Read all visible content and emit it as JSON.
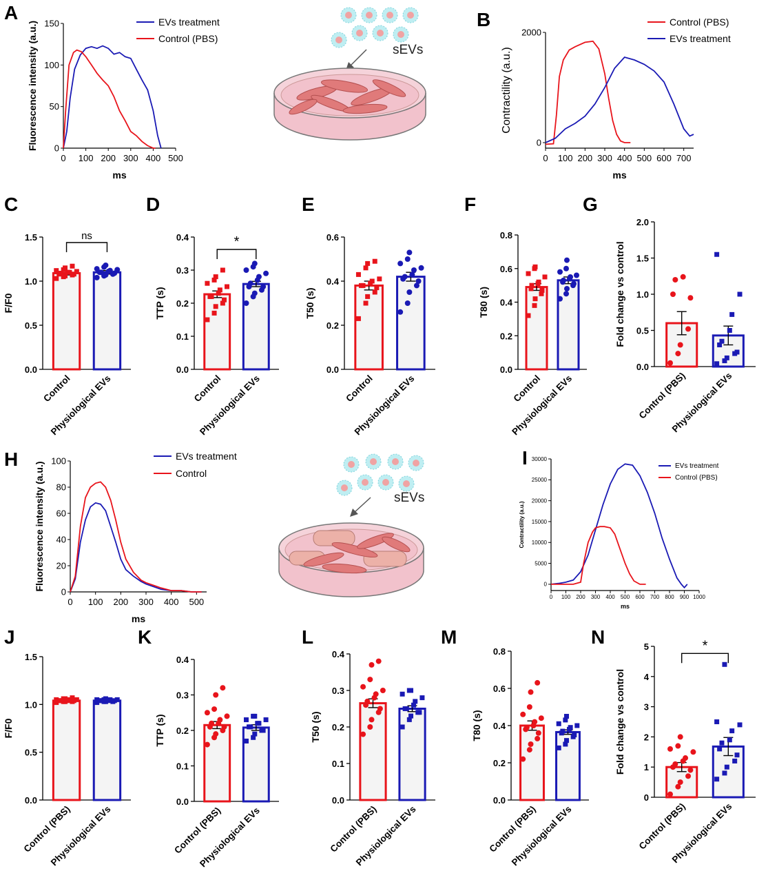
{
  "colors": {
    "red": "#e8141b",
    "blue": "#1a1ab4",
    "bar_fill": "#f4f4f4",
    "axis": "#000000",
    "dish": "#f2c2cc",
    "cell": "#e07a7a",
    "vesicle": "#7fd3dc"
  },
  "illustrations": {
    "top": {
      "label": "sEVs"
    },
    "bottom": {
      "label": "sEVs"
    }
  },
  "chart_data": [
    {
      "id": "A",
      "panel_letter": "A",
      "type": "line",
      "xlabel": "ms",
      "ylabel": "Fluorescence intensity (a.u.)",
      "xlim": [
        0,
        500
      ],
      "ylim": [
        0,
        150
      ],
      "xticks": [
        "0",
        "100",
        "200",
        "300",
        "400",
        "500"
      ],
      "yticks": [
        "0",
        "50",
        "100",
        "150"
      ],
      "legend": [
        "EVs treatment",
        "Control (PBS)"
      ],
      "legend_position": "top-right",
      "series": [
        {
          "name": "EVs treatment",
          "color": "#1a1ab4",
          "x": [
            0,
            15,
            30,
            50,
            75,
            100,
            125,
            150,
            175,
            200,
            225,
            250,
            275,
            300,
            325,
            350,
            375,
            400,
            420,
            435
          ],
          "y": [
            0,
            20,
            60,
            95,
            112,
            120,
            122,
            120,
            123,
            120,
            113,
            115,
            110,
            108,
            95,
            82,
            70,
            45,
            15,
            0
          ]
        },
        {
          "name": "Control (PBS)",
          "color": "#e8141b",
          "x": [
            0,
            10,
            25,
            45,
            60,
            80,
            100,
            125,
            150,
            175,
            200,
            225,
            250,
            275,
            300,
            325,
            350,
            375,
            400,
            410
          ],
          "y": [
            0,
            45,
            100,
            115,
            118,
            116,
            110,
            100,
            90,
            82,
            75,
            62,
            45,
            33,
            20,
            15,
            8,
            3,
            0,
            0
          ]
        }
      ]
    },
    {
      "id": "B",
      "panel_letter": "B",
      "type": "line",
      "xlabel": "ms",
      "ylabel": "Contractility (a.u.)",
      "xlim": [
        0,
        750
      ],
      "ylim": [
        -100,
        2000
      ],
      "xticks": [
        "0",
        "100",
        "200",
        "300",
        "400",
        "500",
        "600",
        "700"
      ],
      "yticks": [
        "0",
        "2000"
      ],
      "legend": [
        "Control (PBS)",
        "EVs treatment"
      ],
      "legend_position": "top-right",
      "series": [
        {
          "name": "Control (PBS)",
          "color": "#e8141b",
          "x": [
            0,
            40,
            55,
            70,
            90,
            120,
            150,
            200,
            240,
            270,
            300,
            320,
            340,
            360,
            380,
            400,
            430
          ],
          "y": [
            -30,
            -20,
            500,
            1200,
            1500,
            1680,
            1740,
            1820,
            1840,
            1700,
            1250,
            800,
            400,
            150,
            30,
            0,
            0
          ]
        },
        {
          "name": "EVs treatment",
          "color": "#1a1ab4",
          "x": [
            0,
            50,
            100,
            150,
            200,
            250,
            300,
            350,
            400,
            450,
            500,
            550,
            600,
            650,
            700,
            730,
            750
          ],
          "y": [
            0,
            80,
            250,
            350,
            480,
            700,
            1000,
            1350,
            1550,
            1500,
            1420,
            1300,
            1100,
            700,
            250,
            120,
            150
          ]
        }
      ]
    },
    {
      "id": "C",
      "panel_letter": "C",
      "type": "bar",
      "categories": [
        "Control",
        "Physiological EVs"
      ],
      "ylabel": "F/F0",
      "ylim": [
        0,
        1.5
      ],
      "yticks": [
        "0.0",
        "0.5",
        "1.0",
        "1.5"
      ],
      "significance": "ns",
      "values": [
        1.09,
        1.1
      ],
      "errors": [
        0.02,
        0.02
      ],
      "points": [
        [
          1.03,
          1.05,
          1.06,
          1.07,
          1.08,
          1.08,
          1.09,
          1.1,
          1.1,
          1.11,
          1.12,
          1.13,
          1.15,
          1.17
        ],
        [
          1.04,
          1.06,
          1.07,
          1.08,
          1.09,
          1.1,
          1.1,
          1.11,
          1.12,
          1.13,
          1.14,
          1.16,
          1.18
        ]
      ]
    },
    {
      "id": "D",
      "panel_letter": "D",
      "type": "bar",
      "categories": [
        "Control",
        "Physiological EVs"
      ],
      "ylabel": "TTP (s)",
      "ylim": [
        0,
        0.4
      ],
      "yticks": [
        "0.0",
        "0.1",
        "0.2",
        "0.3",
        "0.4"
      ],
      "significance": "*",
      "values": [
        0.227,
        0.258
      ],
      "errors": [
        0.01,
        0.008
      ],
      "points": [
        [
          0.15,
          0.17,
          0.19,
          0.2,
          0.21,
          0.22,
          0.22,
          0.23,
          0.24,
          0.25,
          0.26,
          0.27,
          0.28,
          0.3
        ],
        [
          0.2,
          0.22,
          0.23,
          0.24,
          0.25,
          0.25,
          0.26,
          0.27,
          0.28,
          0.29,
          0.3,
          0.31,
          0.32
        ]
      ]
    },
    {
      "id": "E",
      "panel_letter": "E",
      "type": "bar",
      "categories": [
        "Control",
        "Physiological EVs"
      ],
      "ylabel": "T50 (s)",
      "ylim": [
        0,
        0.6
      ],
      "yticks": [
        "0.0",
        "0.2",
        "0.4",
        "0.6"
      ],
      "significance": "",
      "values": [
        0.38,
        0.42
      ],
      "errors": [
        0.02,
        0.02
      ],
      "points": [
        [
          0.23,
          0.3,
          0.33,
          0.35,
          0.37,
          0.38,
          0.38,
          0.39,
          0.4,
          0.41,
          0.43,
          0.46,
          0.48,
          0.49
        ],
        [
          0.26,
          0.3,
          0.35,
          0.38,
          0.4,
          0.41,
          0.42,
          0.43,
          0.45,
          0.46,
          0.48,
          0.5,
          0.53
        ]
      ]
    },
    {
      "id": "F",
      "panel_letter": "F",
      "type": "bar",
      "categories": [
        "Control",
        "Physiological EVs"
      ],
      "ylabel": "T80 (s)",
      "ylim": [
        0,
        0.8
      ],
      "yticks": [
        "0.0",
        "0.2",
        "0.4",
        "0.6",
        "0.8"
      ],
      "significance": "",
      "values": [
        0.49,
        0.53
      ],
      "errors": [
        0.02,
        0.02
      ],
      "points": [
        [
          0.32,
          0.38,
          0.42,
          0.45,
          0.47,
          0.48,
          0.5,
          0.51,
          0.52,
          0.55,
          0.57,
          0.6,
          0.61
        ],
        [
          0.42,
          0.45,
          0.48,
          0.5,
          0.51,
          0.52,
          0.53,
          0.54,
          0.55,
          0.56,
          0.58,
          0.6,
          0.65
        ]
      ]
    },
    {
      "id": "G",
      "panel_letter": "G",
      "type": "bar",
      "categories": [
        "Control (PBS)",
        "Physiological EVs"
      ],
      "ylabel": "Fold change vs control",
      "ylim": [
        0,
        2.0
      ],
      "yticks": [
        "0.0",
        "0.5",
        "1.0",
        "1.5",
        "2.0"
      ],
      "significance": "",
      "values": [
        0.6,
        0.43
      ],
      "errors": [
        0.16,
        0.13
      ],
      "points": [
        [
          0.05,
          0.18,
          0.3,
          0.52,
          0.95,
          1.0,
          1.2,
          1.24
        ],
        [
          0.04,
          0.08,
          0.12,
          0.18,
          0.2,
          0.3,
          0.35,
          0.5,
          0.72,
          1.0,
          1.55
        ]
      ]
    },
    {
      "id": "H",
      "panel_letter": "H",
      "type": "line",
      "xlabel": "ms",
      "ylabel": "Fluorescence intensity (a.u.)",
      "xlim": [
        0,
        540
      ],
      "ylim": [
        0,
        100
      ],
      "xticks": [
        "0",
        "100",
        "200",
        "300",
        "400",
        "500"
      ],
      "yticks": [
        "0",
        "20",
        "40",
        "60",
        "80",
        "100"
      ],
      "legend": [
        "EVs treatment",
        "Control"
      ],
      "legend_position": "top-right",
      "series": [
        {
          "name": "EVs treatment",
          "color": "#1a1ab4",
          "x": [
            0,
            20,
            40,
            60,
            80,
            100,
            120,
            140,
            160,
            180,
            200,
            220,
            250,
            280,
            300,
            330,
            360,
            400,
            440,
            480,
            520
          ],
          "y": [
            0,
            10,
            38,
            55,
            65,
            68,
            67,
            62,
            50,
            38,
            25,
            17,
            12,
            8,
            6,
            4,
            2,
            1,
            1,
            0,
            0
          ]
        },
        {
          "name": "Control",
          "color": "#e8141b",
          "x": [
            0,
            20,
            40,
            60,
            80,
            100,
            120,
            140,
            160,
            180,
            200,
            220,
            250,
            280,
            300,
            330,
            360,
            400,
            440,
            480,
            520
          ],
          "y": [
            0,
            12,
            50,
            72,
            80,
            83,
            84,
            80,
            70,
            55,
            38,
            25,
            15,
            9,
            7,
            5,
            3,
            1,
            1,
            0,
            0
          ]
        }
      ]
    },
    {
      "id": "I",
      "panel_letter": "I",
      "type": "line",
      "xlabel": "ms",
      "ylabel": "Contractility (a.u.)",
      "xlim": [
        0,
        1000
      ],
      "ylim": [
        -1500,
        30000
      ],
      "xticks": [
        "0",
        "100",
        "200",
        "300",
        "400",
        "500",
        "600",
        "700",
        "800",
        "900",
        "1000"
      ],
      "yticks": [
        "0",
        "5000",
        "10000",
        "15000",
        "20000",
        "25000",
        "30000"
      ],
      "legend": [
        "EVs treatment",
        "Control (PBS)"
      ],
      "legend_position": "top-right",
      "series": [
        {
          "name": "EVs treatment",
          "color": "#1a1ab4",
          "x": [
            0,
            50,
            100,
            150,
            200,
            250,
            300,
            350,
            400,
            450,
            500,
            550,
            600,
            650,
            700,
            750,
            800,
            850,
            880,
            900,
            920
          ],
          "y": [
            0,
            200,
            500,
            1000,
            3000,
            7000,
            13000,
            19000,
            24000,
            27500,
            28800,
            28500,
            26000,
            22000,
            17000,
            11000,
            6000,
            1500,
            0,
            -800,
            0
          ]
        },
        {
          "name": "Control (PBS)",
          "color": "#e8141b",
          "x": [
            0,
            150,
            200,
            220,
            250,
            280,
            300,
            330,
            360,
            400,
            430,
            460,
            500,
            530,
            560,
            600,
            640
          ],
          "y": [
            0,
            0,
            500,
            5000,
            10000,
            12500,
            13500,
            13800,
            13800,
            13500,
            12000,
            9000,
            5000,
            2500,
            800,
            0,
            0
          ]
        }
      ]
    },
    {
      "id": "J",
      "panel_letter": "J",
      "type": "bar",
      "categories": [
        "Control (PBS)",
        "Physiological EVs"
      ],
      "ylabel": "F/F0",
      "ylim": [
        0,
        1.5
      ],
      "yticks": [
        "0.0",
        "0.5",
        "1.0",
        "1.5"
      ],
      "significance": "",
      "values": [
        1.04,
        1.04
      ],
      "errors": [
        0.005,
        0.005
      ],
      "points": [
        [
          1.02,
          1.03,
          1.03,
          1.03,
          1.04,
          1.04,
          1.04,
          1.04,
          1.05,
          1.05,
          1.05,
          1.06,
          1.06,
          1.07
        ],
        [
          1.02,
          1.03,
          1.03,
          1.03,
          1.04,
          1.04,
          1.04,
          1.04,
          1.05,
          1.05,
          1.05,
          1.05,
          1.06
        ]
      ]
    },
    {
      "id": "K",
      "panel_letter": "K",
      "type": "bar",
      "categories": [
        "Control (PBS)",
        "Physiological EVs"
      ],
      "ylabel": "TTP (s)",
      "ylim": [
        0,
        0.4
      ],
      "yticks": [
        "0.0",
        "0.1",
        "0.2",
        "0.3",
        "0.4"
      ],
      "significance": "",
      "values": [
        0.215,
        0.208
      ],
      "errors": [
        0.01,
        0.008
      ],
      "points": [
        [
          0.16,
          0.18,
          0.19,
          0.2,
          0.21,
          0.21,
          0.22,
          0.22,
          0.23,
          0.24,
          0.25,
          0.26,
          0.3,
          0.32
        ],
        [
          0.17,
          0.18,
          0.19,
          0.2,
          0.2,
          0.21,
          0.21,
          0.22,
          0.22,
          0.23,
          0.23,
          0.24,
          0.24
        ]
      ]
    },
    {
      "id": "L",
      "panel_letter": "L",
      "type": "bar",
      "categories": [
        "Control (PBS)",
        "Physiological EVs"
      ],
      "ylabel": "T50 (s)",
      "ylim": [
        0,
        0.4
      ],
      "yticks": [
        "0.0",
        "0.1",
        "0.2",
        "0.3",
        "0.4"
      ],
      "significance": "",
      "values": [
        0.265,
        0.25
      ],
      "errors": [
        0.012,
        0.008
      ],
      "points": [
        [
          0.18,
          0.2,
          0.22,
          0.24,
          0.25,
          0.26,
          0.27,
          0.28,
          0.29,
          0.3,
          0.31,
          0.33,
          0.37,
          0.38
        ],
        [
          0.2,
          0.22,
          0.23,
          0.24,
          0.24,
          0.25,
          0.25,
          0.26,
          0.27,
          0.28,
          0.29,
          0.3,
          0.3
        ]
      ]
    },
    {
      "id": "M",
      "panel_letter": "M",
      "type": "bar",
      "categories": [
        "Control (PBS)",
        "Physiological EVs"
      ],
      "ylabel": "T80 (s)",
      "ylim": [
        0,
        0.8
      ],
      "yticks": [
        "0.0",
        "0.2",
        "0.4",
        "0.6",
        "0.8"
      ],
      "significance": "",
      "values": [
        0.4,
        0.365
      ],
      "errors": [
        0.025,
        0.012
      ],
      "points": [
        [
          0.22,
          0.27,
          0.3,
          0.33,
          0.36,
          0.38,
          0.39,
          0.4,
          0.42,
          0.44,
          0.46,
          0.5,
          0.58,
          0.63
        ],
        [
          0.28,
          0.3,
          0.32,
          0.34,
          0.35,
          0.36,
          0.37,
          0.38,
          0.39,
          0.4,
          0.41,
          0.43,
          0.45
        ]
      ]
    },
    {
      "id": "N",
      "panel_letter": "N",
      "type": "bar",
      "categories": [
        "Control (PBS)",
        "Physiological EVs"
      ],
      "ylabel": "Fold change vs control",
      "ylim": [
        0,
        5
      ],
      "yticks": [
        "0",
        "1",
        "2",
        "3",
        "4",
        "5"
      ],
      "significance": "*",
      "values": [
        1.0,
        1.68
      ],
      "errors": [
        0.15,
        0.3
      ],
      "points": [
        [
          0.1,
          0.35,
          0.5,
          0.7,
          0.9,
          1.0,
          1.1,
          1.2,
          1.3,
          1.5,
          1.6,
          1.7,
          2.0
        ],
        [
          0.6,
          0.8,
          1.0,
          1.2,
          1.4,
          1.6,
          1.8,
          1.9,
          2.2,
          2.4,
          2.5,
          4.4
        ]
      ]
    }
  ]
}
